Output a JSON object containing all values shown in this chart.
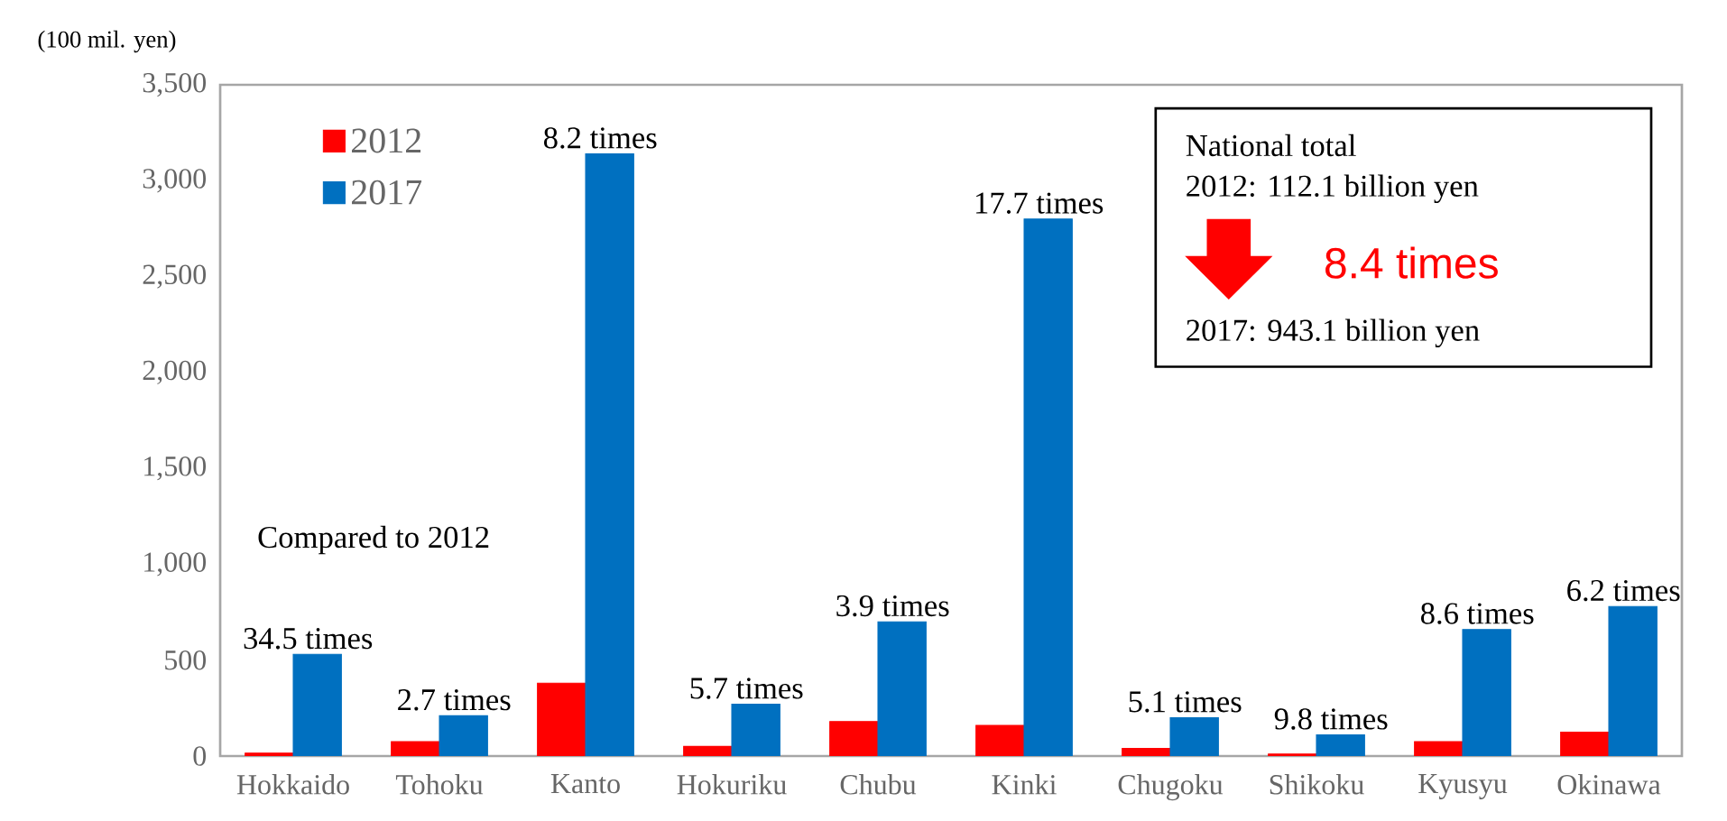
{
  "chart_data": {
    "type": "bar",
    "ylabel": "(100 mil. yen)",
    "categories": [
      "Hokkaido",
      "Tohoku",
      "Kanto",
      "Hokuriku",
      "Chubu",
      "Kinki",
      "Chugoku",
      "Shikoku",
      "Kyusyu",
      "Okinawa"
    ],
    "series": [
      {
        "name": "2012",
        "color": "#ff0000",
        "values": [
          15,
          75,
          380,
          50,
          180,
          160,
          40,
          10,
          75,
          125
        ]
      },
      {
        "name": "2017",
        "color": "#0070c0",
        "values": [
          530,
          210,
          3140,
          270,
          700,
          2800,
          200,
          110,
          660,
          780
        ]
      }
    ],
    "ylim": [
      0,
      3500
    ],
    "yticks": [
      0,
      {
        "value": 500,
        "label": "500"
      },
      {
        "value": 1000,
        "label": "1,000"
      },
      {
        "value": 1500,
        "label": "1,500"
      },
      {
        "value": 2000,
        "label": "2,000"
      },
      {
        "value": 2500,
        "label": "2,500"
      },
      {
        "value": 3000,
        "label": "3,000"
      },
      {
        "value": 3500,
        "label": "3,500"
      }
    ],
    "legend": "top left",
    "grid": false,
    "annotations": [
      "Compared to 2012",
      {
        "text": "34.5 times",
        "x": "Hokkaido",
        "y": 530
      },
      {
        "text": "2.7 times",
        "x": "Tohoku",
        "y": 210
      },
      {
        "text": "8.2 times",
        "x": "Kanto",
        "y": 3140
      },
      {
        "text": "5.7 times",
        "x": "Hokuriku",
        "y": 270
      },
      {
        "text": "3.9 times",
        "x": "Chubu",
        "y": 700
      },
      {
        "text": "17.7 times",
        "x": "Kinki",
        "y": 2800
      },
      {
        "text": "5.1 times",
        "x": "Chugoku",
        "y": 200
      },
      {
        "text": "9.8 times",
        "x": "Shikoku",
        "y": 110
      },
      {
        "text": "8.6 times",
        "x": "Kyusyu",
        "y": 660
      },
      {
        "text": "6.2 times",
        "x": "Okinawa",
        "y": 780
      },
      "National total",
      "2012: 112.1 billion yen",
      "8.4 times",
      "2017: 943.1 billion yen"
    ]
  }
}
